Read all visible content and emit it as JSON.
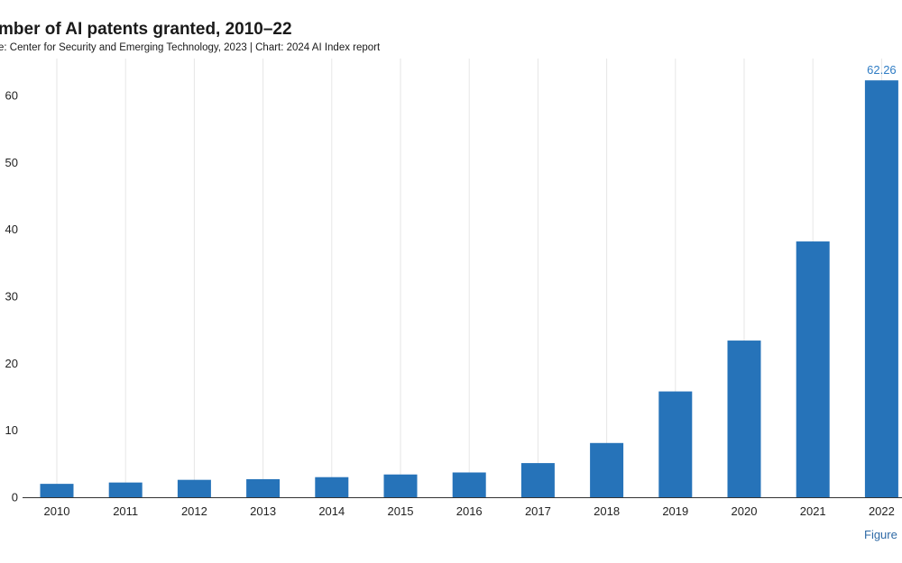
{
  "title": "mber of AI patents granted, 2010–22",
  "subtitle": "e: Center for Security and Emerging Technology, 2023 | Chart: 2024 AI Index report",
  "figure_note": "Figure",
  "colors": {
    "bar": "#2673b9",
    "data_label": "#2f7cc4",
    "grid": "#e6e6e6",
    "axis": "#333333"
  },
  "chart_data": {
    "type": "bar",
    "title": "mber of AI patents granted, 2010–22",
    "xlabel": "",
    "ylabel": "",
    "categories": [
      "2010",
      "2011",
      "2012",
      "2013",
      "2014",
      "2015",
      "2016",
      "2017",
      "2018",
      "2019",
      "2020",
      "2021",
      "2022"
    ],
    "values": [
      2.0,
      2.2,
      2.6,
      2.7,
      3.0,
      3.4,
      3.7,
      5.1,
      8.1,
      15.8,
      23.4,
      38.2,
      62.26
    ],
    "data_labels": {
      "2022": "62.26"
    },
    "ylim": [
      0,
      65
    ],
    "yticks": [
      0,
      10,
      20,
      30,
      40,
      50,
      60
    ],
    "grid": "vertical"
  }
}
